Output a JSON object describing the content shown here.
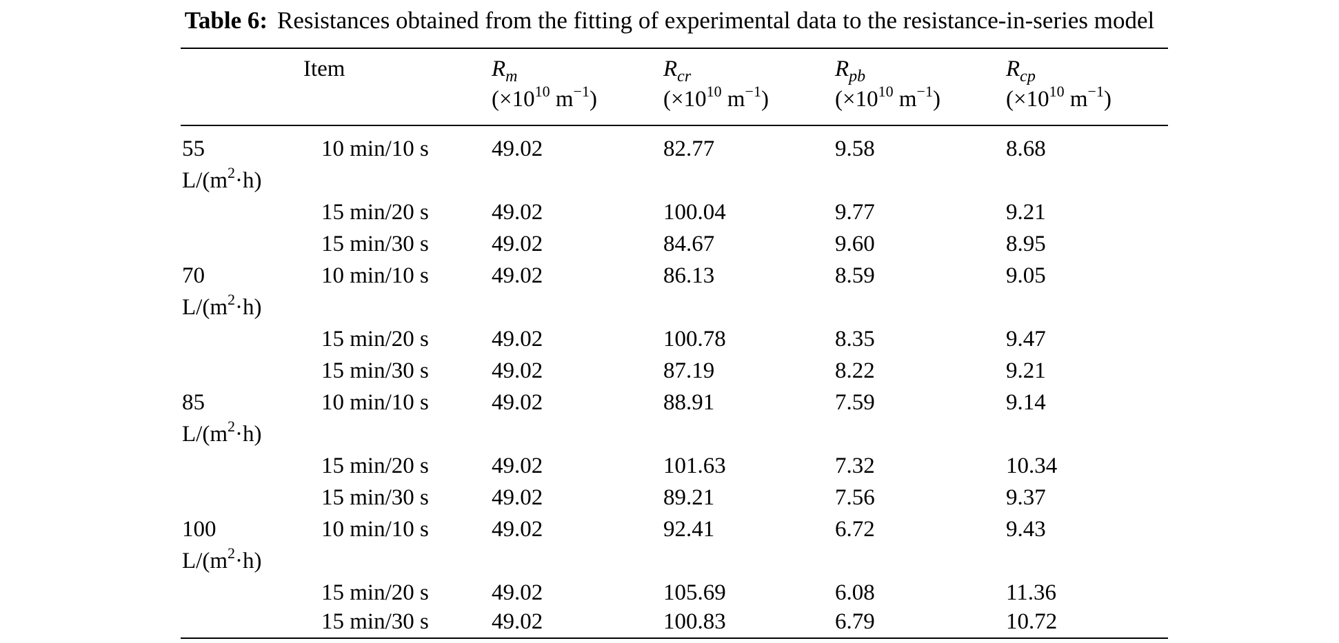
{
  "caption": {
    "label": "Table 6:",
    "text": "Resistances obtained from the fitting of experimental data to the resistance-in-series model"
  },
  "table": {
    "item_header": "Item",
    "columns": [
      {
        "symbol": "R",
        "subscript": "m",
        "unit_open": "(×10",
        "unit_exp": "10",
        "unit_mid": " m",
        "unit_sup": "−1",
        "unit_close": ")"
      },
      {
        "symbol": "R",
        "subscript": "cr",
        "unit_open": "(×10",
        "unit_exp": "10",
        "unit_mid": " m",
        "unit_sup": "−1",
        "unit_close": ")"
      },
      {
        "symbol": "R",
        "subscript": "pb",
        "unit_open": "(×10",
        "unit_exp": "10",
        "unit_mid": " m",
        "unit_sup": "−1",
        "unit_close": ")"
      },
      {
        "symbol": "R",
        "subscript": "cp",
        "unit_open": "(×10",
        "unit_exp": "10",
        "unit_mid": " m",
        "unit_sup": "−1",
        "unit_close": ")"
      }
    ],
    "groups": [
      {
        "flux": "55",
        "unit_pre": "L/(m",
        "unit_sup": "2",
        "unit_post": "·h)",
        "rows": [
          {
            "condition": "10 min/10 s",
            "rm": "49.02",
            "rcr": "82.77",
            "rpb": "9.58",
            "rcp": "8.68"
          },
          {
            "condition": "15 min/20 s",
            "rm": "49.02",
            "rcr": "100.04",
            "rpb": "9.77",
            "rcp": "9.21"
          },
          {
            "condition": "15 min/30 s",
            "rm": "49.02",
            "rcr": "84.67",
            "rpb": "9.60",
            "rcp": "8.95"
          }
        ]
      },
      {
        "flux": "70",
        "unit_pre": "L/(m",
        "unit_sup": "2",
        "unit_post": "·h)",
        "rows": [
          {
            "condition": "10 min/10 s",
            "rm": "49.02",
            "rcr": "86.13",
            "rpb": "8.59",
            "rcp": "9.05"
          },
          {
            "condition": "15 min/20 s",
            "rm": "49.02",
            "rcr": "100.78",
            "rpb": "8.35",
            "rcp": "9.47"
          },
          {
            "condition": "15 min/30 s",
            "rm": "49.02",
            "rcr": "87.19",
            "rpb": "8.22",
            "rcp": "9.21"
          }
        ]
      },
      {
        "flux": "85",
        "unit_pre": "L/(m",
        "unit_sup": "2",
        "unit_post": "·h)",
        "rows": [
          {
            "condition": "10 min/10 s",
            "rm": "49.02",
            "rcr": "88.91",
            "rpb": "7.59",
            "rcp": "9.14"
          },
          {
            "condition": "15 min/20 s",
            "rm": "49.02",
            "rcr": "101.63",
            "rpb": "7.32",
            "rcp": "10.34"
          },
          {
            "condition": "15 min/30 s",
            "rm": "49.02",
            "rcr": "89.21",
            "rpb": "7.56",
            "rcp": "9.37"
          }
        ]
      },
      {
        "flux": "100",
        "unit_pre": "L/(m",
        "unit_sup": "2",
        "unit_post": "·h)",
        "rows": [
          {
            "condition": "10 min/10 s",
            "rm": "49.02",
            "rcr": "92.41",
            "rpb": "6.72",
            "rcp": "9.43"
          },
          {
            "condition": "15 min/20 s",
            "rm": "49.02",
            "rcr": "105.69",
            "rpb": "6.08",
            "rcp": "11.36"
          },
          {
            "condition": "15 min/30 s",
            "rm": "49.02",
            "rcr": "100.83",
            "rpb": "6.79",
            "rcp": "10.72"
          }
        ]
      }
    ]
  }
}
